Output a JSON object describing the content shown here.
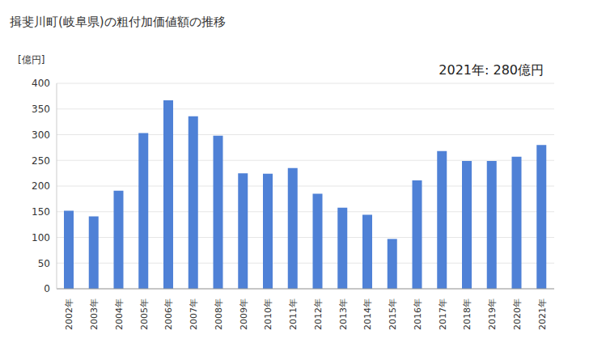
{
  "chart_data": {
    "type": "bar",
    "title": "揖斐川町(岐阜県)の粗付加価値額の推移",
    "y_label": "[億円]",
    "annotation": "2021年: 280億円",
    "categories": [
      "2002年",
      "2003年",
      "2004年",
      "2005年",
      "2006年",
      "2007年",
      "2008年",
      "2009年",
      "2010年",
      "2011年",
      "2012年",
      "2013年",
      "2014年",
      "2015年",
      "2016年",
      "2017年",
      "2018年",
      "2019年",
      "2020年",
      "2021年"
    ],
    "values": [
      152,
      141,
      191,
      303,
      367,
      336,
      298,
      225,
      224,
      235,
      185,
      158,
      144,
      97,
      211,
      268,
      249,
      249,
      257,
      280
    ],
    "color": "#4f81d6",
    "ylim": [
      0,
      400
    ],
    "yticks": [
      0,
      50,
      100,
      150,
      200,
      250,
      300,
      350,
      400
    ],
    "grid": true
  }
}
